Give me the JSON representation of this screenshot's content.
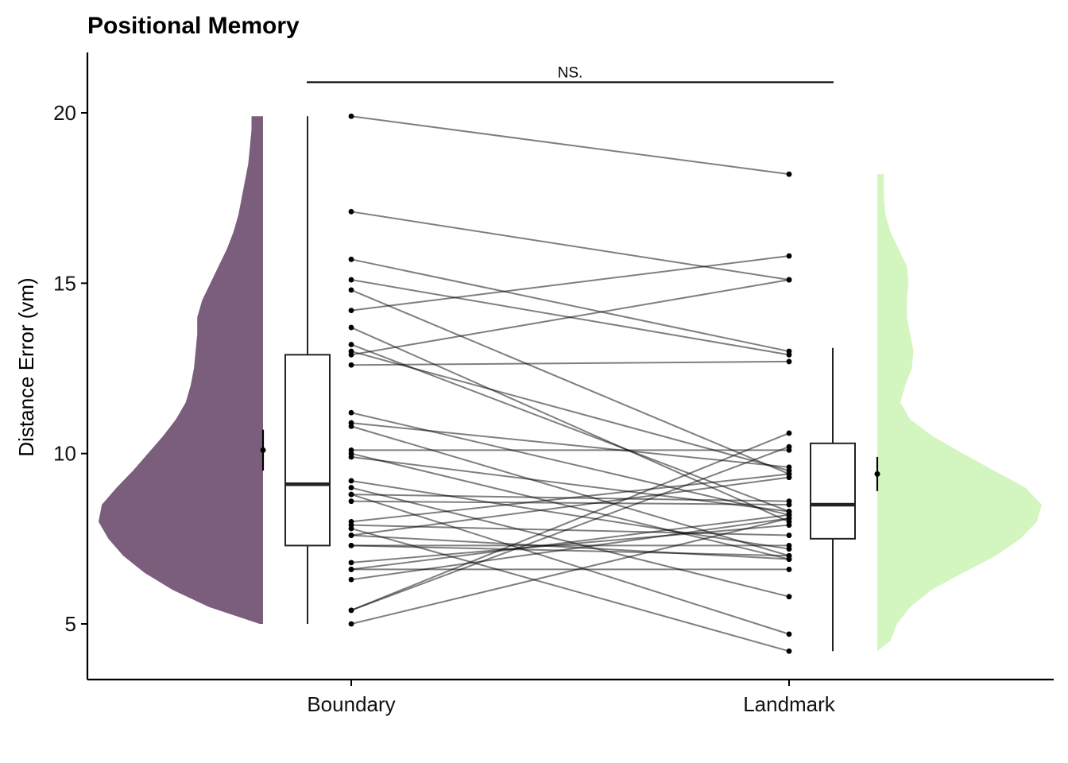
{
  "chart_data": {
    "type": "raincloud",
    "title": "Positional Memory",
    "xlabel": "",
    "ylabel": "Distance Error (vm)",
    "ylim": [
      3.4,
      21.8
    ],
    "yticks": [
      5,
      10,
      15,
      20
    ],
    "categories": [
      "Boundary",
      "Landmark"
    ],
    "colors": {
      "Boundary": "#7b5e7b",
      "Landmark": "#d3f5c0"
    },
    "grid": false,
    "significance": {
      "label": "NS.",
      "y": 20.9
    },
    "boxplot": {
      "Boundary": {
        "min": 5.0,
        "q1": 7.3,
        "median": 9.1,
        "q3": 12.9,
        "max": 19.9
      },
      "Landmark": {
        "min": 4.2,
        "q1": 7.5,
        "median": 8.5,
        "q3": 10.3,
        "max": 13.1
      }
    },
    "mean_ci": {
      "Boundary": {
        "mean": 10.1,
        "lo": 9.5,
        "hi": 10.7
      },
      "Landmark": {
        "mean": 9.4,
        "lo": 8.9,
        "hi": 9.9
      }
    },
    "density": {
      "Boundary": [
        [
          5.0,
          0.02
        ],
        [
          5.5,
          0.33
        ],
        [
          6.0,
          0.55
        ],
        [
          6.5,
          0.72
        ],
        [
          7.0,
          0.85
        ],
        [
          7.5,
          0.94
        ],
        [
          8.0,
          1.0
        ],
        [
          8.5,
          0.98
        ],
        [
          9.0,
          0.89
        ],
        [
          9.5,
          0.79
        ],
        [
          10.0,
          0.7
        ],
        [
          10.5,
          0.61
        ],
        [
          11.0,
          0.53
        ],
        [
          11.5,
          0.47
        ],
        [
          12.0,
          0.44
        ],
        [
          12.5,
          0.42
        ],
        [
          13.0,
          0.41
        ],
        [
          13.5,
          0.4
        ],
        [
          14.0,
          0.4
        ],
        [
          14.5,
          0.37
        ],
        [
          15.0,
          0.32
        ],
        [
          15.5,
          0.27
        ],
        [
          16.0,
          0.22
        ],
        [
          16.5,
          0.18
        ],
        [
          17.0,
          0.15
        ],
        [
          17.5,
          0.13
        ],
        [
          18.0,
          0.11
        ],
        [
          18.5,
          0.09
        ],
        [
          19.0,
          0.08
        ],
        [
          19.5,
          0.07
        ],
        [
          19.9,
          0.07
        ]
      ],
      "Landmark": [
        [
          4.2,
          0.0
        ],
        [
          4.5,
          0.08
        ],
        [
          5.0,
          0.12
        ],
        [
          5.5,
          0.2
        ],
        [
          6.0,
          0.33
        ],
        [
          6.5,
          0.52
        ],
        [
          7.0,
          0.72
        ],
        [
          7.5,
          0.87
        ],
        [
          8.0,
          0.97
        ],
        [
          8.5,
          1.0
        ],
        [
          9.0,
          0.9
        ],
        [
          9.5,
          0.71
        ],
        [
          10.0,
          0.52
        ],
        [
          10.5,
          0.34
        ],
        [
          11.0,
          0.2
        ],
        [
          11.5,
          0.14
        ],
        [
          12.0,
          0.17
        ],
        [
          12.5,
          0.21
        ],
        [
          13.0,
          0.22
        ],
        [
          13.5,
          0.2
        ],
        [
          14.0,
          0.18
        ],
        [
          14.5,
          0.18
        ],
        [
          15.0,
          0.19
        ],
        [
          15.5,
          0.18
        ],
        [
          16.0,
          0.13
        ],
        [
          16.5,
          0.08
        ],
        [
          17.0,
          0.05
        ],
        [
          17.5,
          0.04
        ],
        [
          18.2,
          0.04
        ]
      ]
    },
    "pairs": [
      [
        19.9,
        18.2
      ],
      [
        17.1,
        15.1
      ],
      [
        15.7,
        13.0
      ],
      [
        15.1,
        12.9
      ],
      [
        14.8,
        9.4
      ],
      [
        14.2,
        15.8
      ],
      [
        13.7,
        8.0
      ],
      [
        13.2,
        8.3
      ],
      [
        13.0,
        9.5
      ],
      [
        12.9,
        15.1
      ],
      [
        12.6,
        12.7
      ],
      [
        11.2,
        8.2
      ],
      [
        10.9,
        9.6
      ],
      [
        10.8,
        7.0
      ],
      [
        10.1,
        10.1
      ],
      [
        10.0,
        6.9
      ],
      [
        9.9,
        8.3
      ],
      [
        9.2,
        7.2
      ],
      [
        9.0,
        5.8
      ],
      [
        8.8,
        4.7
      ],
      [
        8.8,
        8.6
      ],
      [
        8.6,
        8.5
      ],
      [
        8.0,
        9.4
      ],
      [
        7.9,
        7.6
      ],
      [
        7.8,
        4.2
      ],
      [
        7.6,
        9.3
      ],
      [
        7.6,
        6.9
      ],
      [
        7.3,
        7.3
      ],
      [
        7.3,
        7.0
      ],
      [
        6.8,
        7.9
      ],
      [
        6.6,
        6.6
      ],
      [
        6.6,
        8.2
      ],
      [
        6.3,
        8.1
      ],
      [
        5.4,
        10.2
      ],
      [
        5.4,
        10.6
      ],
      [
        5.0,
        8.1
      ]
    ]
  }
}
